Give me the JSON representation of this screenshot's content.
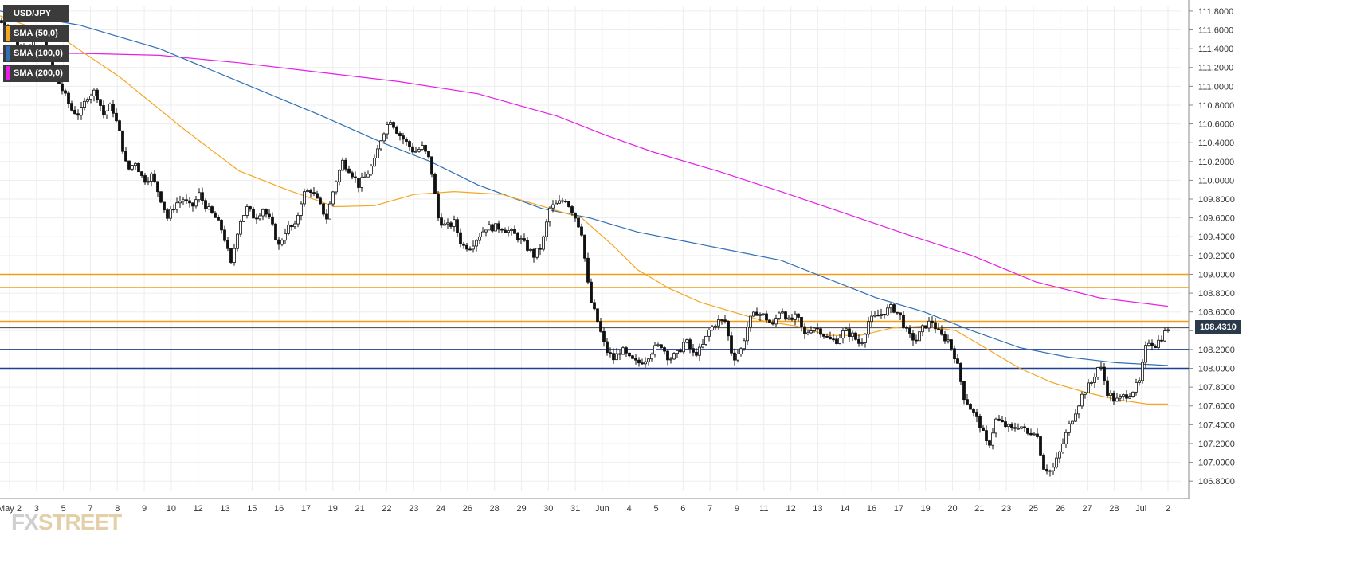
{
  "legend": {
    "symbol": "USD/JPY",
    "sma50": "SMA (50,0)",
    "sma100": "SMA (100,0)",
    "sma200": "SMA (200,0)"
  },
  "colors": {
    "candle_up": "#ffffff",
    "candle_down": "#111111",
    "sma50": "#f5a623",
    "sma100": "#2f6fb6",
    "sma200": "#e61ee6",
    "resistance": "#f39c12",
    "support": "#1f3f8f",
    "grid": "#ededed"
  },
  "watermark": {
    "fx": "FX",
    "street": "STREET"
  },
  "current_price": "108.4310",
  "chart_data": {
    "type": "candlestick",
    "title": "",
    "ylim": [
      106.7,
      111.85
    ],
    "yticks": [
      "111.8000",
      "111.6000",
      "111.4000",
      "111.2000",
      "111.0000",
      "110.8000",
      "110.6000",
      "110.4000",
      "110.2000",
      "110.0000",
      "109.8000",
      "109.6000",
      "109.4000",
      "109.2000",
      "109.0000",
      "108.8000",
      "108.6000",
      "108.4000",
      "108.2000",
      "108.0000",
      "107.8000",
      "107.6000",
      "107.4000",
      "107.2000",
      "107.0000",
      "106.8000"
    ],
    "xlabels": [
      "May 2",
      "3",
      "5",
      "7",
      "8",
      "9",
      "10",
      "12",
      "13",
      "15",
      "16",
      "17",
      "19",
      "21",
      "22",
      "23",
      "24",
      "26",
      "28",
      "29",
      "30",
      "31",
      "Jun",
      "4",
      "5",
      "6",
      "7",
      "9",
      "11",
      "12",
      "13",
      "14",
      "16",
      "17",
      "19",
      "20",
      "21",
      "23",
      "25",
      "26",
      "27",
      "28",
      "Jul",
      "2"
    ],
    "horizontal_levels": {
      "resistance": [
        109.0,
        108.86,
        108.5
      ],
      "support": [
        108.2,
        108.0
      ]
    },
    "close_path": [
      [
        0,
        111.7
      ],
      [
        30,
        111.35
      ],
      [
        50,
        111.6
      ],
      [
        70,
        111.1
      ],
      [
        90,
        110.75
      ],
      [
        100,
        110.7
      ],
      [
        110,
        110.9
      ],
      [
        120,
        110.95
      ],
      [
        130,
        110.7
      ],
      [
        140,
        110.8
      ],
      [
        150,
        110.5
      ],
      [
        160,
        110.1
      ],
      [
        170,
        110.2
      ],
      [
        180,
        110.0
      ],
      [
        190,
        110.05
      ],
      [
        200,
        109.85
      ],
      [
        210,
        109.6
      ],
      [
        220,
        109.75
      ],
      [
        230,
        109.8
      ],
      [
        240,
        109.7
      ],
      [
        250,
        109.85
      ],
      [
        260,
        109.7
      ],
      [
        270,
        109.6
      ],
      [
        280,
        109.45
      ],
      [
        290,
        109.1
      ],
      [
        300,
        109.55
      ],
      [
        310,
        109.7
      ],
      [
        320,
        109.6
      ],
      [
        330,
        109.7
      ],
      [
        340,
        109.55
      ],
      [
        350,
        109.3
      ],
      [
        360,
        109.5
      ],
      [
        370,
        109.5
      ],
      [
        380,
        109.85
      ],
      [
        390,
        109.9
      ],
      [
        400,
        109.75
      ],
      [
        410,
        109.6
      ],
      [
        420,
        109.95
      ],
      [
        430,
        110.2
      ],
      [
        440,
        110.1
      ],
      [
        450,
        109.95
      ],
      [
        460,
        110.05
      ],
      [
        470,
        110.2
      ],
      [
        480,
        110.5
      ],
      [
        490,
        110.65
      ],
      [
        500,
        110.5
      ],
      [
        510,
        110.4
      ],
      [
        520,
        110.3
      ],
      [
        530,
        110.35
      ],
      [
        540,
        110.2
      ],
      [
        550,
        109.6
      ],
      [
        560,
        109.5
      ],
      [
        570,
        109.55
      ],
      [
        580,
        109.3
      ],
      [
        590,
        109.3
      ],
      [
        600,
        109.4
      ],
      [
        610,
        109.5
      ],
      [
        620,
        109.5
      ],
      [
        630,
        109.5
      ],
      [
        640,
        109.45
      ],
      [
        650,
        109.4
      ],
      [
        660,
        109.3
      ],
      [
        670,
        109.2
      ],
      [
        680,
        109.3
      ],
      [
        690,
        109.7
      ],
      [
        700,
        109.75
      ],
      [
        710,
        109.8
      ],
      [
        720,
        109.65
      ],
      [
        730,
        109.45
      ],
      [
        740,
        108.75
      ],
      [
        750,
        108.5
      ],
      [
        760,
        108.2
      ],
      [
        770,
        108.1
      ],
      [
        780,
        108.2
      ],
      [
        790,
        108.1
      ],
      [
        800,
        108.05
      ],
      [
        810,
        108.1
      ],
      [
        820,
        108.2
      ],
      [
        830,
        108.25
      ],
      [
        840,
        108.1
      ],
      [
        850,
        108.15
      ],
      [
        860,
        108.3
      ],
      [
        870,
        108.15
      ],
      [
        880,
        108.2
      ],
      [
        890,
        108.4
      ],
      [
        900,
        108.5
      ],
      [
        910,
        108.5
      ],
      [
        920,
        108.1
      ],
      [
        930,
        108.2
      ],
      [
        940,
        108.5
      ],
      [
        950,
        108.6
      ],
      [
        960,
        108.55
      ],
      [
        970,
        108.45
      ],
      [
        980,
        108.65
      ],
      [
        990,
        108.5
      ],
      [
        1000,
        108.55
      ],
      [
        1010,
        108.35
      ],
      [
        1020,
        108.45
      ],
      [
        1030,
        108.4
      ],
      [
        1040,
        108.3
      ],
      [
        1050,
        108.3
      ],
      [
        1060,
        108.4
      ],
      [
        1070,
        108.35
      ],
      [
        1080,
        108.25
      ],
      [
        1090,
        108.5
      ],
      [
        1100,
        108.55
      ],
      [
        1110,
        108.6
      ],
      [
        1120,
        108.65
      ],
      [
        1130,
        108.55
      ],
      [
        1140,
        108.35
      ],
      [
        1150,
        108.3
      ],
      [
        1160,
        108.45
      ],
      [
        1170,
        108.5
      ],
      [
        1180,
        108.35
      ],
      [
        1190,
        108.3
      ],
      [
        1200,
        108.1
      ],
      [
        1210,
        107.7
      ],
      [
        1220,
        107.55
      ],
      [
        1230,
        107.4
      ],
      [
        1240,
        107.15
      ],
      [
        1250,
        107.45
      ],
      [
        1260,
        107.4
      ],
      [
        1270,
        107.35
      ],
      [
        1280,
        107.4
      ],
      [
        1290,
        107.3
      ],
      [
        1300,
        107.35
      ],
      [
        1310,
        106.95
      ],
      [
        1320,
        106.9
      ],
      [
        1330,
        107.1
      ],
      [
        1340,
        107.35
      ],
      [
        1350,
        107.55
      ],
      [
        1360,
        107.75
      ],
      [
        1370,
        107.85
      ],
      [
        1380,
        108.05
      ],
      [
        1390,
        107.75
      ],
      [
        1400,
        107.65
      ],
      [
        1410,
        107.7
      ],
      [
        1420,
        107.75
      ],
      [
        1430,
        107.85
      ],
      [
        1440,
        108.3
      ],
      [
        1450,
        108.25
      ],
      [
        1460,
        108.35
      ],
      [
        1466,
        108.43
      ]
    ],
    "sma50_path": [
      [
        0,
        111.75
      ],
      [
        80,
        111.5
      ],
      [
        150,
        111.1
      ],
      [
        230,
        110.55
      ],
      [
        300,
        110.1
      ],
      [
        360,
        109.9
      ],
      [
        420,
        109.72
      ],
      [
        470,
        109.73
      ],
      [
        520,
        109.85
      ],
      [
        570,
        109.88
      ],
      [
        630,
        109.85
      ],
      [
        690,
        109.7
      ],
      [
        730,
        109.6
      ],
      [
        770,
        109.3
      ],
      [
        800,
        109.05
      ],
      [
        840,
        108.85
      ],
      [
        880,
        108.7
      ],
      [
        920,
        108.6
      ],
      [
        960,
        108.5
      ],
      [
        1000,
        108.45
      ],
      [
        1040,
        108.35
      ],
      [
        1080,
        108.35
      ],
      [
        1120,
        108.43
      ],
      [
        1160,
        108.45
      ],
      [
        1200,
        108.4
      ],
      [
        1240,
        108.2
      ],
      [
        1280,
        108.0
      ],
      [
        1320,
        107.85
      ],
      [
        1360,
        107.75
      ],
      [
        1400,
        107.67
      ],
      [
        1440,
        107.62
      ],
      [
        1466,
        107.62
      ]
    ],
    "sma100_path": [
      [
        0,
        111.8
      ],
      [
        100,
        111.65
      ],
      [
        200,
        111.4
      ],
      [
        300,
        111.05
      ],
      [
        400,
        110.7
      ],
      [
        480,
        110.4
      ],
      [
        540,
        110.2
      ],
      [
        600,
        109.95
      ],
      [
        680,
        109.7
      ],
      [
        740,
        109.6
      ],
      [
        800,
        109.45
      ],
      [
        860,
        109.35
      ],
      [
        920,
        109.25
      ],
      [
        980,
        109.15
      ],
      [
        1040,
        108.95
      ],
      [
        1100,
        108.75
      ],
      [
        1160,
        108.6
      ],
      [
        1220,
        108.4
      ],
      [
        1280,
        108.22
      ],
      [
        1340,
        108.12
      ],
      [
        1400,
        108.06
      ],
      [
        1466,
        108.03
      ]
    ],
    "sma200_path": [
      [
        0,
        111.35
      ],
      [
        100,
        111.35
      ],
      [
        200,
        111.33
      ],
      [
        300,
        111.25
      ],
      [
        400,
        111.15
      ],
      [
        500,
        111.05
      ],
      [
        600,
        110.92
      ],
      [
        700,
        110.68
      ],
      [
        760,
        110.48
      ],
      [
        820,
        110.3
      ],
      [
        900,
        110.1
      ],
      [
        980,
        109.88
      ],
      [
        1060,
        109.65
      ],
      [
        1140,
        109.42
      ],
      [
        1220,
        109.2
      ],
      [
        1300,
        108.92
      ],
      [
        1380,
        108.75
      ],
      [
        1466,
        108.66
      ]
    ]
  }
}
